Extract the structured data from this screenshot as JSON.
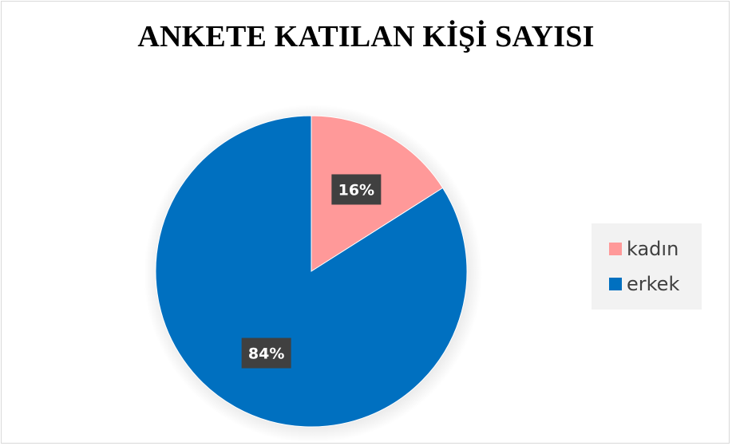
{
  "chart_data": {
    "type": "pie",
    "title": "ANKETE KATILAN KİŞİ SAYISI",
    "categories": [
      "kadın",
      "erkek"
    ],
    "values": [
      16,
      84
    ],
    "data_labels": [
      "16%",
      "84%"
    ],
    "colors": [
      "#ff9999",
      "#0070c0"
    ],
    "legend_position": "right",
    "start_angle": "top, clockwise"
  }
}
